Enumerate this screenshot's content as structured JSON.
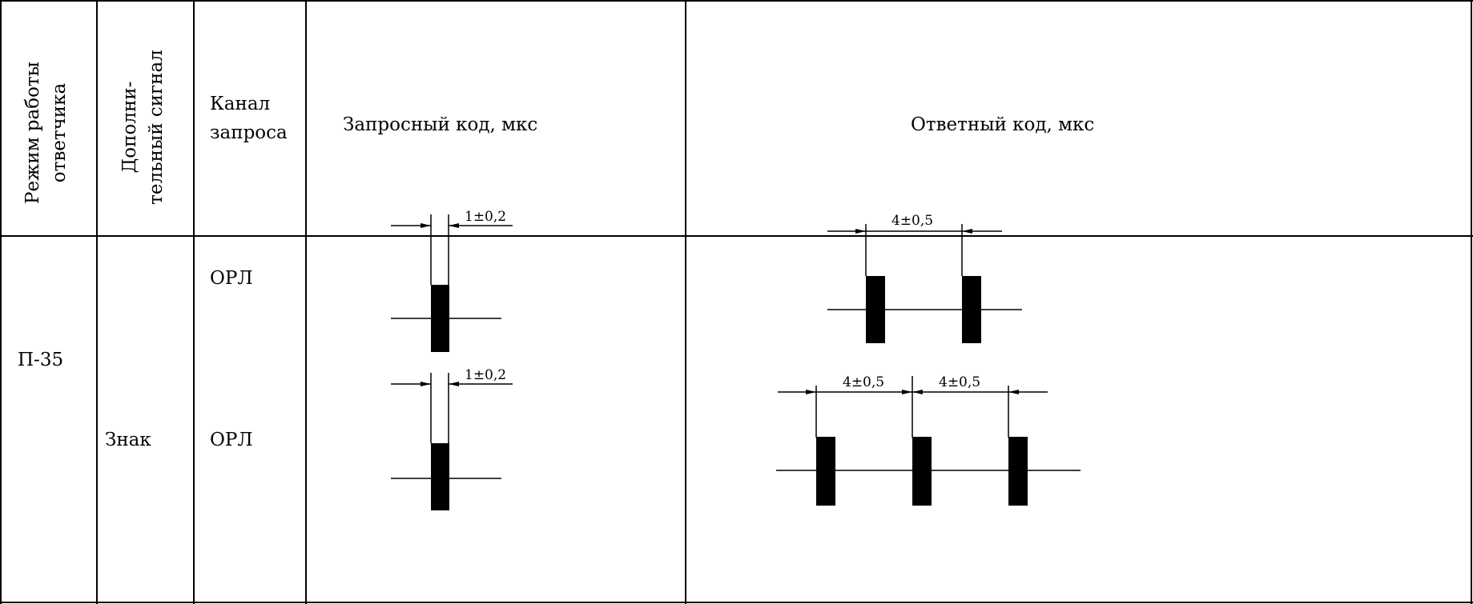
{
  "header": {
    "mode_line1": "Режим работы",
    "mode_line2": "ответчика",
    "signal_line1": "Дополни-",
    "signal_line2": "тельный сигнал",
    "channel_line1": "Канал",
    "channel_line2": "запроса",
    "request_code": "Запросный код, мкс",
    "response_code": "Ответный код, мкс"
  },
  "rows": {
    "mode_value": "П-35",
    "row1": {
      "signal": "",
      "channel": "ОРЛ",
      "request_dim": "1±0,2",
      "response_dims": [
        "4±0,5"
      ]
    },
    "row2": {
      "signal": "Знак",
      "channel": "ОРЛ",
      "request_dim": "1±0,2",
      "response_dims": [
        "4±0,5",
        "4±0,5"
      ]
    }
  }
}
